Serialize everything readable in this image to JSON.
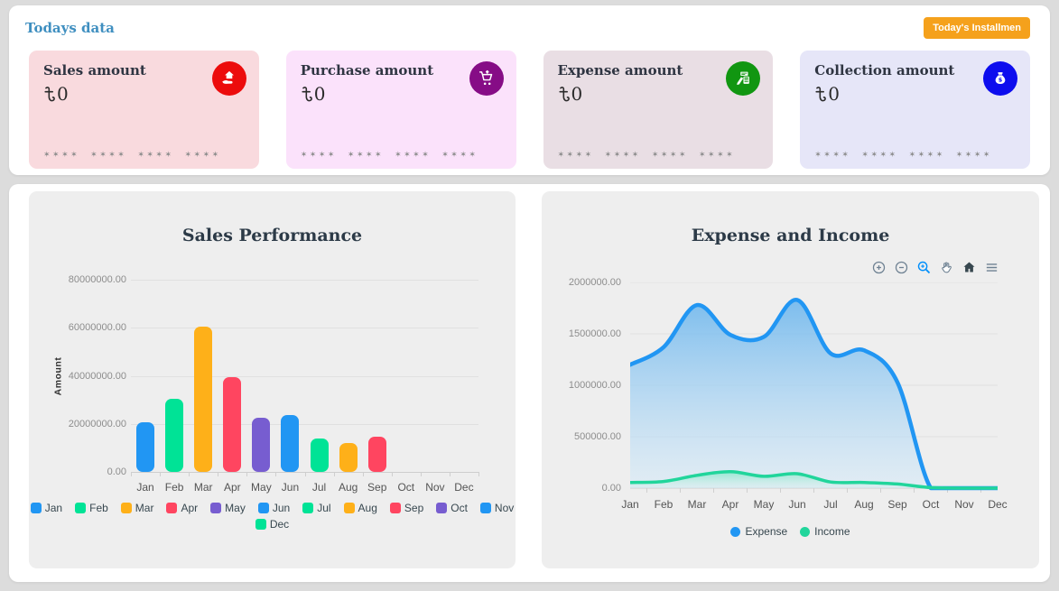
{
  "header": {
    "todays_data_label": "Todays data",
    "installment_button_label": "Today's Installmen",
    "installment_button_color": "#f5a11c"
  },
  "currency_symbol": "৳",
  "masked_digits": "✶✶✶✶ ✶✶✶✶ ✶✶✶✶ ✶✶✶✶",
  "stat_cards": [
    {
      "title": "Sales amount",
      "value": "0",
      "bg": "#f9dade",
      "icon": "hand-holding-house-icon",
      "icon_bg": "#ec0c0c"
    },
    {
      "title": "Purchase amount",
      "value": "0",
      "bg": "#fbe2fb",
      "icon": "shopping-cart-icon",
      "icon_bg": "#860c86"
    },
    {
      "title": "Expense amount",
      "value": "0",
      "bg": "#e9dee4",
      "icon": "calculator-pen-icon",
      "icon_bg": "#119611"
    },
    {
      "title": "Collection amount",
      "value": "0",
      "bg": "#e6e6f8",
      "icon": "money-bag-icon",
      "icon_bg": "#0d0dee"
    }
  ],
  "chart_data": [
    {
      "type": "bar",
      "title": "Sales Performance",
      "ylabel": "Amount",
      "categories": [
        "Jan",
        "Feb",
        "Mar",
        "Apr",
        "May",
        "Jun",
        "Jul",
        "Aug",
        "Sep",
        "Oct",
        "Nov",
        "Dec"
      ],
      "values": [
        20500000,
        30500000,
        60500000,
        39500000,
        22500000,
        23500000,
        14000000,
        12000000,
        14500000,
        0,
        0,
        0
      ],
      "ylim": [
        0,
        80000000
      ],
      "yticks": [
        "80000000.00",
        "60000000.00",
        "40000000.00",
        "20000000.00",
        "0.00"
      ],
      "palette": [
        "#2196f3",
        "#00e396",
        "#feb019",
        "#ff4560",
        "#775dd0"
      ],
      "grid": "horizontal",
      "legend_position": "bottom"
    },
    {
      "type": "area",
      "title": "Expense and Income",
      "categories": [
        "Jan",
        "Feb",
        "Mar",
        "Apr",
        "May",
        "Jun",
        "Jul",
        "Aug",
        "Sep",
        "Oct",
        "Nov",
        "Dec"
      ],
      "series": [
        {
          "name": "Expense",
          "color": "#2196f3",
          "values": [
            1200000,
            1370000,
            1780000,
            1490000,
            1470000,
            1830000,
            1310000,
            1340000,
            1030000,
            0,
            0,
            0
          ]
        },
        {
          "name": "Income",
          "color": "#21d59b",
          "values": [
            55000,
            65000,
            125000,
            160000,
            115000,
            140000,
            60000,
            55000,
            40000,
            5000,
            0,
            0
          ]
        }
      ],
      "ylim": [
        0,
        2000000
      ],
      "yticks": [
        "2000000.00",
        "1500000.00",
        "1000000.00",
        "500000.00",
        "0.00"
      ],
      "grid": "horizontal",
      "legend_position": "bottom",
      "toolbar": [
        "zoom-in",
        "zoom-out",
        "selection-zoom",
        "pan",
        "home",
        "menu"
      ],
      "active_tool": "selection-zoom"
    }
  ]
}
